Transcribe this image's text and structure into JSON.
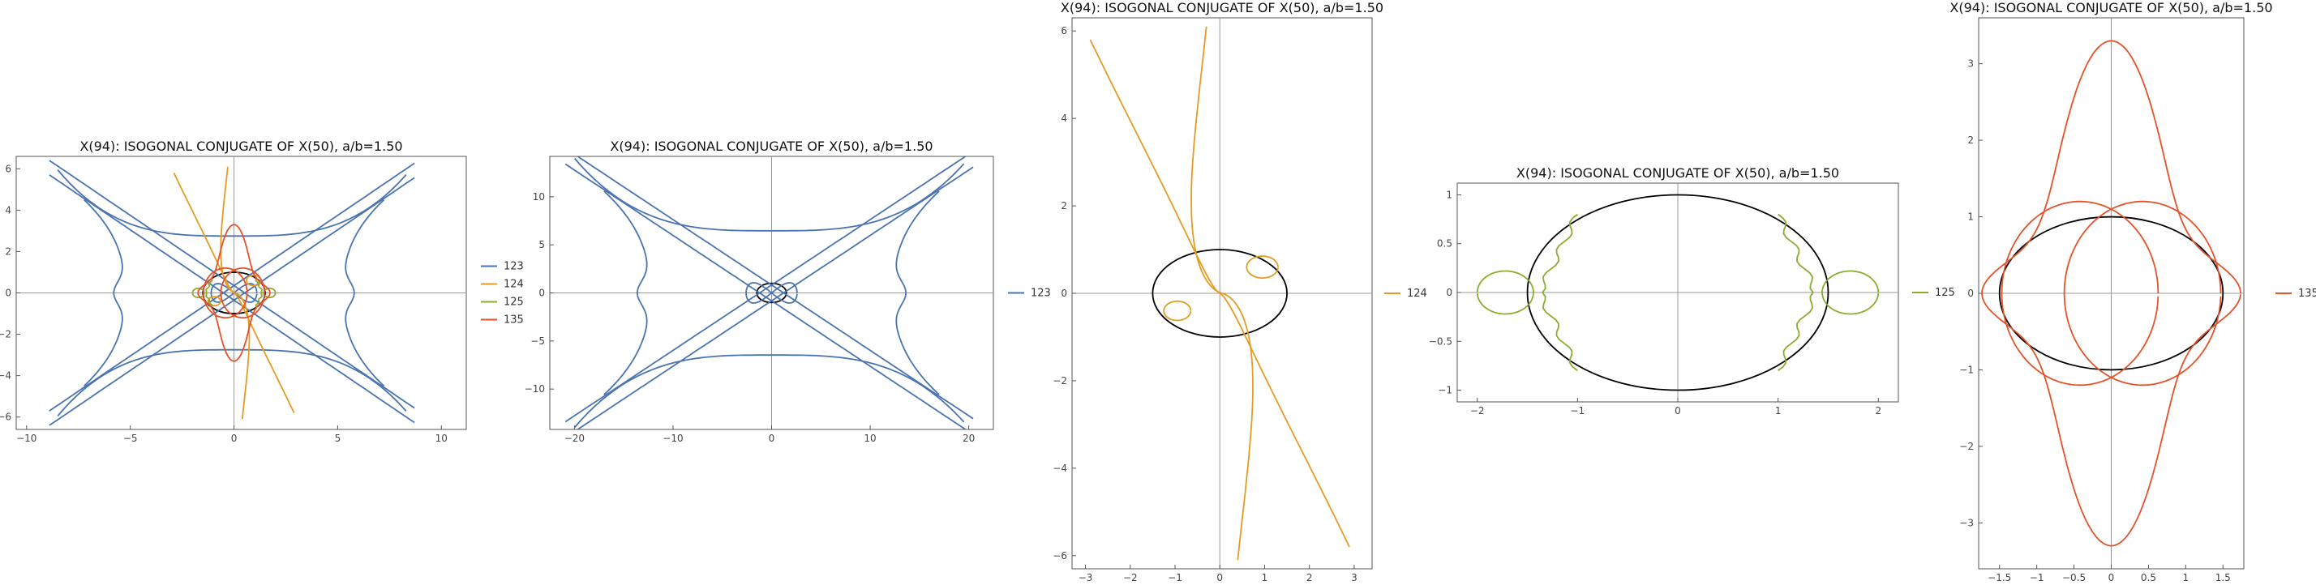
{
  "chart_data": [
    {
      "type": "line",
      "title": "X(94): ISOGONAL CONJUGATE OF X(50), a/b=1.50",
      "xlabel": "",
      "ylabel": "",
      "xlim": [
        -10.5,
        11.2
      ],
      "ylim": [
        -6.6,
        6.6
      ],
      "xticks": [
        -10,
        -5,
        0,
        5,
        10
      ],
      "yticks": [
        -6,
        -4,
        -2,
        0,
        2,
        4,
        6
      ],
      "ellipse": {
        "a": 1.5,
        "b": 1.0,
        "color": "#000000"
      },
      "legend": {
        "position": "right",
        "entries": [
          "123",
          "124",
          "125",
          "135"
        ]
      },
      "series": [
        {
          "name": "123",
          "color": "#4a74b0",
          "kind": "k123",
          "scale": 1.0
        },
        {
          "name": "124",
          "color": "#e59c21",
          "kind": "k124",
          "scale": 1.0
        },
        {
          "name": "125",
          "color": "#8aac2f",
          "kind": "k125",
          "scale": 1.0
        },
        {
          "name": "135",
          "color": "#e4522a",
          "kind": "k135",
          "scale": 1.0
        }
      ]
    },
    {
      "type": "line",
      "title": "X(94): ISOGONAL CONJUGATE OF X(50), a/b=1.50",
      "xlabel": "",
      "ylabel": "",
      "xlim": [
        -22.5,
        22.5
      ],
      "ylim": [
        -14.2,
        14.2
      ],
      "xticks": [
        -20,
        -10,
        0,
        10,
        20
      ],
      "yticks": [
        -10,
        -5,
        0,
        5,
        10
      ],
      "ellipse": {
        "a": 1.5,
        "b": 1.0,
        "color": "#000000"
      },
      "legend": {
        "position": "right",
        "entries": [
          "123"
        ]
      },
      "series": [
        {
          "name": "123",
          "color": "#4a74b0",
          "kind": "k123",
          "scale": 2.35
        }
      ]
    },
    {
      "type": "line",
      "title": "X(94): ISOGONAL CONJUGATE OF X(50), a/b=1.50",
      "xlabel": "",
      "ylabel": "",
      "xlim": [
        -3.3,
        3.4
      ],
      "ylim": [
        -6.3,
        6.3
      ],
      "xticks": [
        -3,
        -2,
        -1,
        0,
        1,
        2,
        3
      ],
      "yticks": [
        -6,
        -4,
        -2,
        0,
        2,
        4,
        6
      ],
      "ellipse": {
        "a": 1.5,
        "b": 1.0,
        "color": "#000000"
      },
      "legend": {
        "position": "right",
        "entries": [
          "124"
        ]
      },
      "series": [
        {
          "name": "124",
          "color": "#e59c21",
          "kind": "k124",
          "scale": 1.0
        }
      ]
    },
    {
      "type": "line",
      "title": "X(94): ISOGONAL CONJUGATE OF X(50), a/b=1.50",
      "xlabel": "",
      "ylabel": "",
      "xlim": [
        -2.2,
        2.2
      ],
      "ylim": [
        -1.12,
        1.12
      ],
      "xticks": [
        -2,
        -1,
        0,
        1,
        2
      ],
      "yticks": [
        -1.0,
        -0.5,
        0.0,
        0.5,
        1.0
      ],
      "ellipse": {
        "a": 1.5,
        "b": 1.0,
        "color": "#000000"
      },
      "legend": {
        "position": "right",
        "entries": [
          "125"
        ]
      },
      "series": [
        {
          "name": "125",
          "color": "#8aac2f",
          "kind": "k125",
          "scale": 1.0
        }
      ]
    },
    {
      "type": "line",
      "title": "X(94): ISOGONAL CONJUGATE OF X(50), a/b=1.50",
      "xlabel": "",
      "ylabel": "",
      "xlim": [
        -1.78,
        1.78
      ],
      "ylim": [
        -3.6,
        3.6
      ],
      "xticks": [
        -1.5,
        -1.0,
        -0.5,
        0.0,
        0.5,
        1.0,
        1.5
      ],
      "yticks": [
        -3,
        -2,
        -1,
        0,
        1,
        2,
        3
      ],
      "ellipse": {
        "a": 1.5,
        "b": 1.0,
        "color": "#000000"
      },
      "legend": {
        "position": "right",
        "entries": [
          "135"
        ]
      },
      "series": [
        {
          "name": "135",
          "color": "#e4522a",
          "kind": "k135",
          "scale": 1.0
        }
      ]
    }
  ]
}
